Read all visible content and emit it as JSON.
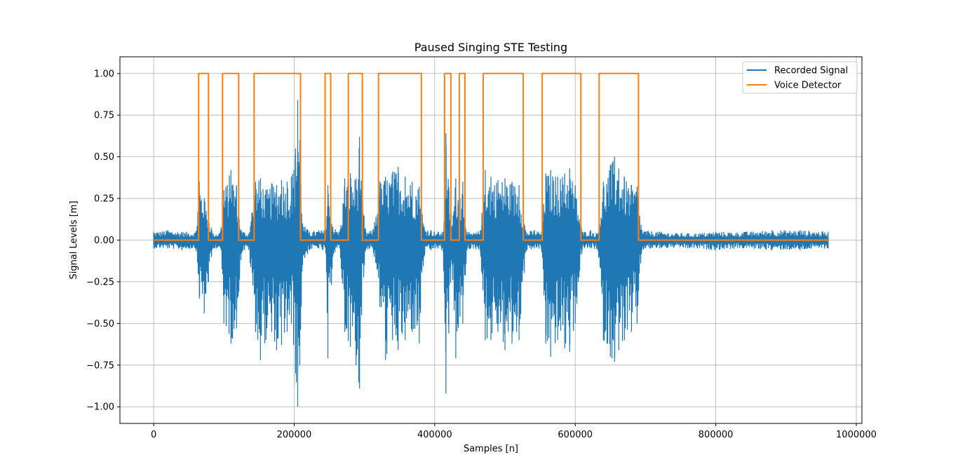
{
  "chart_data": {
    "type": "line",
    "title": "Paused Singing STE Testing",
    "xlabel": "Samples [n]",
    "ylabel": "Signal Levels [m]",
    "xlim": [
      -48000,
      1008000
    ],
    "ylim": [
      -1.1,
      1.1
    ],
    "grid": true,
    "legend_position": "top-right",
    "xticks": [
      0,
      200000,
      400000,
      600000,
      800000,
      1000000
    ],
    "xtick_labels": [
      "0",
      "200000",
      "400000",
      "600000",
      "800000",
      "1000000"
    ],
    "yticks": [
      -1.0,
      -0.75,
      -0.5,
      -0.25,
      0.0,
      0.25,
      0.5,
      0.75,
      1.0
    ],
    "ytick_labels": [
      "−1.00",
      "−0.75",
      "−0.50",
      "−0.25",
      "0.00",
      "0.25",
      "0.50",
      "0.75",
      "1.00"
    ],
    "series": [
      {
        "name": "Recorded Signal",
        "color": "#1f77b4",
        "x": [
          0,
          20000,
          40000,
          60000,
          65000,
          72000,
          78000,
          85000,
          95000,
          100000,
          110000,
          118000,
          125000,
          135000,
          145000,
          152000,
          160000,
          168000,
          175000,
          182000,
          190000,
          196000,
          202000,
          205000,
          208000,
          212000,
          222000,
          235000,
          245000,
          248000,
          255000,
          265000,
          272000,
          280000,
          288000,
          293000,
          296000,
          302000,
          312000,
          322000,
          330000,
          340000,
          348000,
          358000,
          368000,
          378000,
          385000,
          395000,
          405000,
          412000,
          416000,
          420000,
          424000,
          430000,
          436000,
          440000,
          446000,
          455000,
          465000,
          472000,
          480000,
          490000,
          500000,
          510000,
          520000,
          530000,
          542000,
          552000,
          558000,
          565000,
          575000,
          585000,
          592000,
          600000,
          610000,
          622000,
          632000,
          640000,
          650000,
          656000,
          662000,
          670000,
          680000,
          688000,
          695000,
          720000,
          760000,
          800000,
          840000,
          880000,
          920000,
          960000
        ],
        "y_max": [
          0.05,
          0.06,
          0.05,
          0.05,
          0.35,
          0.25,
          0.15,
          0.04,
          0.05,
          0.3,
          0.42,
          0.33,
          0.06,
          0.04,
          0.35,
          0.37,
          0.3,
          0.34,
          0.33,
          0.36,
          0.35,
          0.38,
          0.55,
          0.84,
          0.6,
          0.1,
          0.05,
          0.06,
          0.06,
          0.33,
          0.08,
          0.05,
          0.37,
          0.4,
          0.37,
          0.62,
          0.3,
          0.05,
          0.06,
          0.35,
          0.38,
          0.41,
          0.44,
          0.38,
          0.35,
          0.32,
          0.08,
          0.06,
          0.05,
          0.05,
          0.64,
          0.32,
          0.08,
          0.37,
          0.25,
          0.35,
          0.05,
          0.04,
          0.06,
          0.42,
          0.38,
          0.36,
          0.37,
          0.35,
          0.33,
          0.05,
          0.06,
          0.05,
          0.4,
          0.42,
          0.38,
          0.4,
          0.43,
          0.33,
          0.05,
          0.06,
          0.04,
          0.35,
          0.45,
          0.5,
          0.43,
          0.38,
          0.33,
          0.32,
          0.06,
          0.05,
          0.04,
          0.05,
          0.05,
          0.06,
          0.06,
          0.05
        ],
        "y_min": [
          -0.05,
          -0.05,
          -0.06,
          -0.05,
          -0.35,
          -0.44,
          -0.25,
          -0.05,
          -0.05,
          -0.5,
          -0.62,
          -0.53,
          -0.08,
          -0.05,
          -0.55,
          -0.72,
          -0.6,
          -0.55,
          -0.66,
          -0.63,
          -0.55,
          -0.5,
          -0.8,
          -1.0,
          -0.75,
          -0.15,
          -0.06,
          -0.05,
          -0.08,
          -0.71,
          -0.1,
          -0.05,
          -0.55,
          -0.64,
          -0.75,
          -0.89,
          -0.45,
          -0.06,
          -0.05,
          -0.4,
          -0.72,
          -0.6,
          -0.66,
          -0.6,
          -0.55,
          -0.62,
          -0.1,
          -0.06,
          -0.05,
          -0.07,
          -0.92,
          -0.56,
          -0.12,
          -0.71,
          -0.46,
          -0.5,
          -0.06,
          -0.05,
          -0.07,
          -0.6,
          -0.6,
          -0.55,
          -0.66,
          -0.62,
          -0.6,
          -0.07,
          -0.05,
          -0.06,
          -0.62,
          -0.7,
          -0.6,
          -0.65,
          -0.67,
          -0.5,
          -0.06,
          -0.05,
          -0.06,
          -0.6,
          -0.7,
          -0.73,
          -0.66,
          -0.6,
          -0.55,
          -0.5,
          -0.06,
          -0.05,
          -0.05,
          -0.06,
          -0.05,
          -0.06,
          -0.06,
          -0.05
        ]
      },
      {
        "name": "Voice Detector",
        "color": "#ff7f0e",
        "x": [
          0,
          64000,
          64000,
          78000,
          78000,
          98000,
          98000,
          121000,
          121000,
          143000,
          143000,
          209000,
          209000,
          244000,
          244000,
          252000,
          252000,
          277000,
          277000,
          297000,
          297000,
          320000,
          320000,
          381000,
          381000,
          414000,
          414000,
          423000,
          423000,
          435000,
          435000,
          443000,
          443000,
          469000,
          469000,
          526000,
          526000,
          553000,
          553000,
          608000,
          608000,
          634000,
          634000,
          690000,
          690000,
          960000
        ],
        "y": [
          0,
          0,
          1,
          1,
          0,
          0,
          1,
          1,
          0,
          0,
          1,
          1,
          0,
          0,
          1,
          1,
          0,
          0,
          1,
          1,
          0,
          0,
          1,
          1,
          0,
          0,
          1,
          1,
          0,
          0,
          1,
          1,
          0,
          0,
          1,
          1,
          0,
          0,
          1,
          1,
          0,
          0,
          1,
          1,
          0,
          0
        ]
      }
    ]
  }
}
